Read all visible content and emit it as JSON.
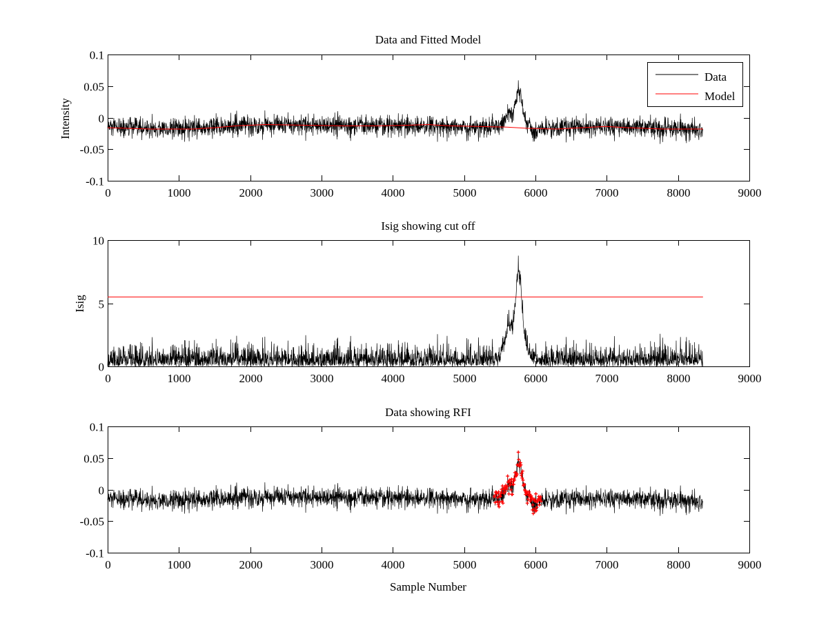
{
  "colors": {
    "data": "#000000",
    "model": "#ff0000",
    "rfi": "#ff0000",
    "axes": "#000000"
  },
  "chart_data": [
    {
      "type": "line",
      "title": "Data and Fitted Model",
      "xlabel": "",
      "ylabel": "Intensity",
      "xlim": [
        0,
        9000
      ],
      "ylim": [
        -0.1,
        0.1
      ],
      "xticks": [
        0,
        1000,
        2000,
        3000,
        4000,
        5000,
        6000,
        7000,
        8000,
        9000
      ],
      "xtick_labels": [
        "0",
        "1000",
        "2000",
        "3000",
        "4000",
        "5000",
        "6000",
        "7000",
        "8000",
        "9000"
      ],
      "yticks": [
        -0.1,
        -0.05,
        0,
        0.05,
        0.1
      ],
      "ytick_labels": [
        "-0.1",
        "-0.05",
        "0",
        "0.05",
        "0.1"
      ],
      "legend": {
        "position": "top-right",
        "entries": [
          "Data",
          "Model"
        ]
      },
      "series": [
        {
          "name": "Data",
          "color": "#000000",
          "kind": "noise",
          "n_samples": 8350,
          "noise_std": 0.008,
          "baseline": {
            "x": [
              0,
              1000,
              2000,
              3000,
              4000,
              4500,
              5000,
              5500,
              6000,
              7000,
              8350
            ],
            "y": [
              -0.016,
              -0.018,
              -0.012,
              -0.012,
              -0.014,
              -0.012,
              -0.015,
              -0.015,
              -0.018,
              -0.013,
              -0.018
            ]
          },
          "pulse": {
            "x": [
              5480,
              5560,
              5620,
              5680,
              5720,
              5760,
              5800,
              5840,
              5900,
              5960
            ],
            "y": [
              0,
              0.01,
              0.025,
              0.02,
              0.04,
              0.062,
              0.045,
              0.02,
              0.005,
              0
            ]
          },
          "dip": {
            "x": [
              5930,
              5960,
              6000,
              6050
            ],
            "y": [
              0,
              -0.012,
              -0.008,
              0
            ]
          }
        },
        {
          "name": "Model",
          "color": "#ff0000",
          "x": [
            0,
            600,
            1200,
            1500,
            1800,
            2200,
            2800,
            3300,
            3800,
            4200,
            4500,
            4800,
            5200,
            5600,
            5900,
            6300,
            6800,
            7000,
            7300,
            7800,
            8350
          ],
          "y": [
            -0.016,
            -0.018,
            -0.018,
            -0.016,
            -0.013,
            -0.011,
            -0.012,
            -0.013,
            -0.013,
            -0.012,
            -0.011,
            -0.013,
            -0.014,
            -0.015,
            -0.017,
            -0.018,
            -0.015,
            -0.014,
            -0.016,
            -0.018,
            -0.018
          ]
        }
      ]
    },
    {
      "type": "line",
      "title": "Isig showing cut off",
      "xlabel": "",
      "ylabel": "Isig",
      "xlim": [
        0,
        9000
      ],
      "ylim": [
        0,
        10
      ],
      "xticks": [
        0,
        1000,
        2000,
        3000,
        4000,
        5000,
        6000,
        7000,
        8000,
        9000
      ],
      "xtick_labels": [
        "0",
        "1000",
        "2000",
        "3000",
        "4000",
        "5000",
        "6000",
        "7000",
        "8000",
        "9000"
      ],
      "yticks": [
        0,
        5,
        10
      ],
      "ytick_labels": [
        "0",
        "5",
        "10"
      ],
      "series": [
        {
          "color": "#000000",
          "kind": "abs-noise",
          "n_samples": 8350,
          "noise_std": 0.8,
          "pulse": {
            "x": [
              5480,
              5560,
              5620,
              5680,
              5720,
              5760,
              5800,
              5840,
              5900,
              5960
            ],
            "y": [
              0,
              1.2,
              3.0,
              2.4,
              4.8,
              7.4,
              5.4,
              2.4,
              0.6,
              0
            ]
          },
          "gap": {
            "x": [
              5620,
              5760
            ]
          }
        },
        {
          "color": "#ff0000",
          "x": [
            0,
            8350
          ],
          "y": [
            5.5,
            5.5
          ]
        }
      ]
    },
    {
      "type": "line",
      "title": "Data showing RFI",
      "xlabel": "Sample Number",
      "ylabel": "",
      "xlim": [
        0,
        9000
      ],
      "ylim": [
        -0.1,
        0.1
      ],
      "xticks": [
        0,
        1000,
        2000,
        3000,
        4000,
        5000,
        6000,
        7000,
        8000,
        9000
      ],
      "xtick_labels": [
        "0",
        "1000",
        "2000",
        "3000",
        "4000",
        "5000",
        "6000",
        "7000",
        "8000",
        "9000"
      ],
      "yticks": [
        -0.1,
        -0.05,
        0,
        0.05,
        0.1
      ],
      "ytick_labels": [
        "-0.1",
        "-0.05",
        "0",
        "0.05",
        "0.1"
      ],
      "series": [
        {
          "color": "#000000",
          "kind": "noise",
          "n_samples": 8350,
          "noise_std": 0.008,
          "baseline": {
            "x": [
              0,
              1000,
              2000,
              3000,
              4000,
              4500,
              5000,
              5500,
              6000,
              7000,
              8350
            ],
            "y": [
              -0.016,
              -0.018,
              -0.012,
              -0.012,
              -0.014,
              -0.012,
              -0.015,
              -0.015,
              -0.018,
              -0.013,
              -0.018
            ]
          },
          "pulse": {
            "x": [
              5480,
              5560,
              5620,
              5680,
              5720,
              5760,
              5800,
              5840,
              5900,
              5960
            ],
            "y": [
              0,
              0.01,
              0.025,
              0.02,
              0.04,
              0.062,
              0.045,
              0.02,
              0.005,
              0
            ]
          },
          "dip": {
            "x": [
              5930,
              5960,
              6000,
              6050
            ],
            "y": [
              0,
              -0.012,
              -0.008,
              0
            ]
          }
        },
        {
          "color": "#ff0000",
          "kind": "highlight-markers",
          "marker": "+",
          "x_range": [
            5420,
            6080
          ]
        }
      ]
    }
  ]
}
